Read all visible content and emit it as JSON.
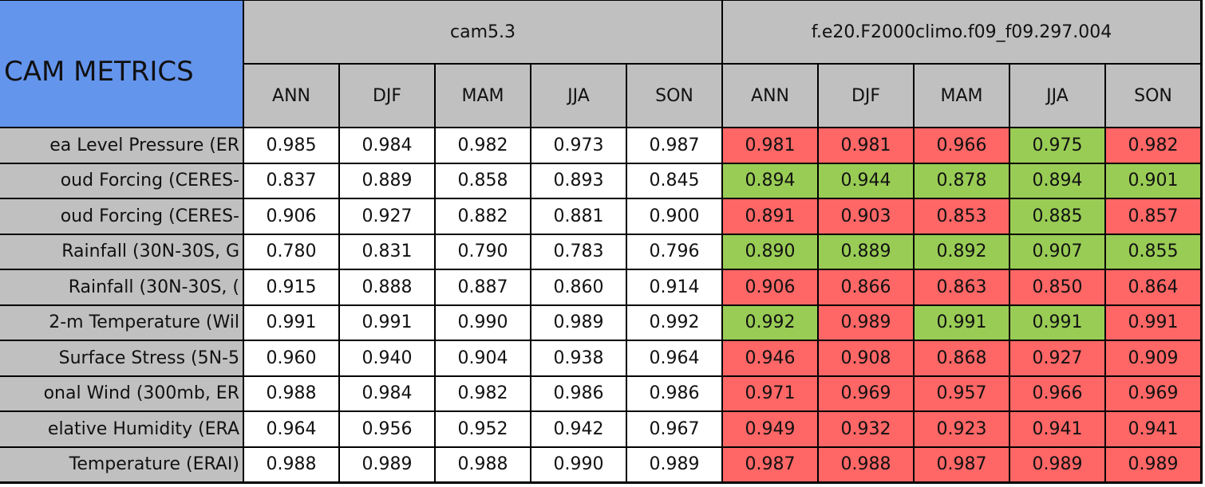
{
  "table": {
    "title": "CAM METRICS",
    "groups": [
      "cam5.3",
      "f.e20.F2000climo.f09_f09.297.004"
    ],
    "seasons": [
      "ANN",
      "DJF",
      "MAM",
      "JJA",
      "SON",
      "ANN",
      "DJF",
      "MAM",
      "JJA",
      "SON"
    ],
    "rows": [
      {
        "label": "ea Level Pressure (ER",
        "cells": [
          "0.985",
          "0.984",
          "0.982",
          "0.973",
          "0.987",
          "0.981",
          "0.981",
          "0.966",
          "0.975",
          "0.982"
        ],
        "colors": [
          "#ffffff",
          "#ffffff",
          "#ffffff",
          "#ffffff",
          "#ffffff",
          "#ff6666",
          "#ff6666",
          "#ff6666",
          "#99cc55",
          "#ff6666"
        ]
      },
      {
        "label": "oud Forcing (CERES-",
        "cells": [
          "0.837",
          "0.889",
          "0.858",
          "0.893",
          "0.845",
          "0.894",
          "0.944",
          "0.878",
          "0.894",
          "0.901"
        ],
        "colors": [
          "#ffffff",
          "#ffffff",
          "#ffffff",
          "#ffffff",
          "#ffffff",
          "#99cc55",
          "#99cc55",
          "#99cc55",
          "#99cc55",
          "#99cc55"
        ]
      },
      {
        "label": "oud Forcing (CERES-",
        "cells": [
          "0.906",
          "0.927",
          "0.882",
          "0.881",
          "0.900",
          "0.891",
          "0.903",
          "0.853",
          "0.885",
          "0.857"
        ],
        "colors": [
          "#ffffff",
          "#ffffff",
          "#ffffff",
          "#ffffff",
          "#ffffff",
          "#ff6666",
          "#ff6666",
          "#ff6666",
          "#99cc55",
          "#ff6666"
        ]
      },
      {
        "label": "Rainfall (30N-30S, G",
        "cells": [
          "0.780",
          "0.831",
          "0.790",
          "0.783",
          "0.796",
          "0.890",
          "0.889",
          "0.892",
          "0.907",
          "0.855"
        ],
        "colors": [
          "#ffffff",
          "#ffffff",
          "#ffffff",
          "#ffffff",
          "#ffffff",
          "#99cc55",
          "#99cc55",
          "#99cc55",
          "#99cc55",
          "#99cc55"
        ]
      },
      {
        "label": "Rainfall (30N-30S, (",
        "cells": [
          "0.915",
          "0.888",
          "0.887",
          "0.860",
          "0.914",
          "0.906",
          "0.866",
          "0.863",
          "0.850",
          "0.864"
        ],
        "colors": [
          "#ffffff",
          "#ffffff",
          "#ffffff",
          "#ffffff",
          "#ffffff",
          "#ff6666",
          "#ff6666",
          "#ff6666",
          "#ff6666",
          "#ff6666"
        ]
      },
      {
        "label": "2-m Temperature (Wil",
        "cells": [
          "0.991",
          "0.991",
          "0.990",
          "0.989",
          "0.992",
          "0.992",
          "0.989",
          "0.991",
          "0.991",
          "0.991"
        ],
        "colors": [
          "#ffffff",
          "#ffffff",
          "#ffffff",
          "#ffffff",
          "#ffffff",
          "#99cc55",
          "#ff6666",
          "#99cc55",
          "#99cc55",
          "#ff6666"
        ]
      },
      {
        "label": "Surface Stress (5N-5",
        "cells": [
          "0.960",
          "0.940",
          "0.904",
          "0.938",
          "0.964",
          "0.946",
          "0.908",
          "0.868",
          "0.927",
          "0.909"
        ],
        "colors": [
          "#ffffff",
          "#ffffff",
          "#ffffff",
          "#ffffff",
          "#ffffff",
          "#ff6666",
          "#ff6666",
          "#ff6666",
          "#ff6666",
          "#ff6666"
        ]
      },
      {
        "label": "onal Wind (300mb, ER",
        "cells": [
          "0.988",
          "0.984",
          "0.982",
          "0.986",
          "0.986",
          "0.971",
          "0.969",
          "0.957",
          "0.966",
          "0.969"
        ],
        "colors": [
          "#ffffff",
          "#ffffff",
          "#ffffff",
          "#ffffff",
          "#ffffff",
          "#ff6666",
          "#ff6666",
          "#ff6666",
          "#ff6666",
          "#ff6666"
        ]
      },
      {
        "label": "elative Humidity (ERA",
        "cells": [
          "0.964",
          "0.956",
          "0.952",
          "0.942",
          "0.967",
          "0.949",
          "0.932",
          "0.923",
          "0.941",
          "0.941"
        ],
        "colors": [
          "#ffffff",
          "#ffffff",
          "#ffffff",
          "#ffffff",
          "#ffffff",
          "#ff6666",
          "#ff6666",
          "#ff6666",
          "#ff6666",
          "#ff6666"
        ]
      },
      {
        "label": "Temperature (ERAI)",
        "cells": [
          "0.988",
          "0.989",
          "0.988",
          "0.990",
          "0.989",
          "0.987",
          "0.988",
          "0.987",
          "0.989",
          "0.989"
        ],
        "colors": [
          "#ffffff",
          "#ffffff",
          "#ffffff",
          "#ffffff",
          "#ffffff",
          "#ff6666",
          "#ff6666",
          "#ff6666",
          "#ff6666",
          "#ff6666"
        ]
      }
    ]
  }
}
